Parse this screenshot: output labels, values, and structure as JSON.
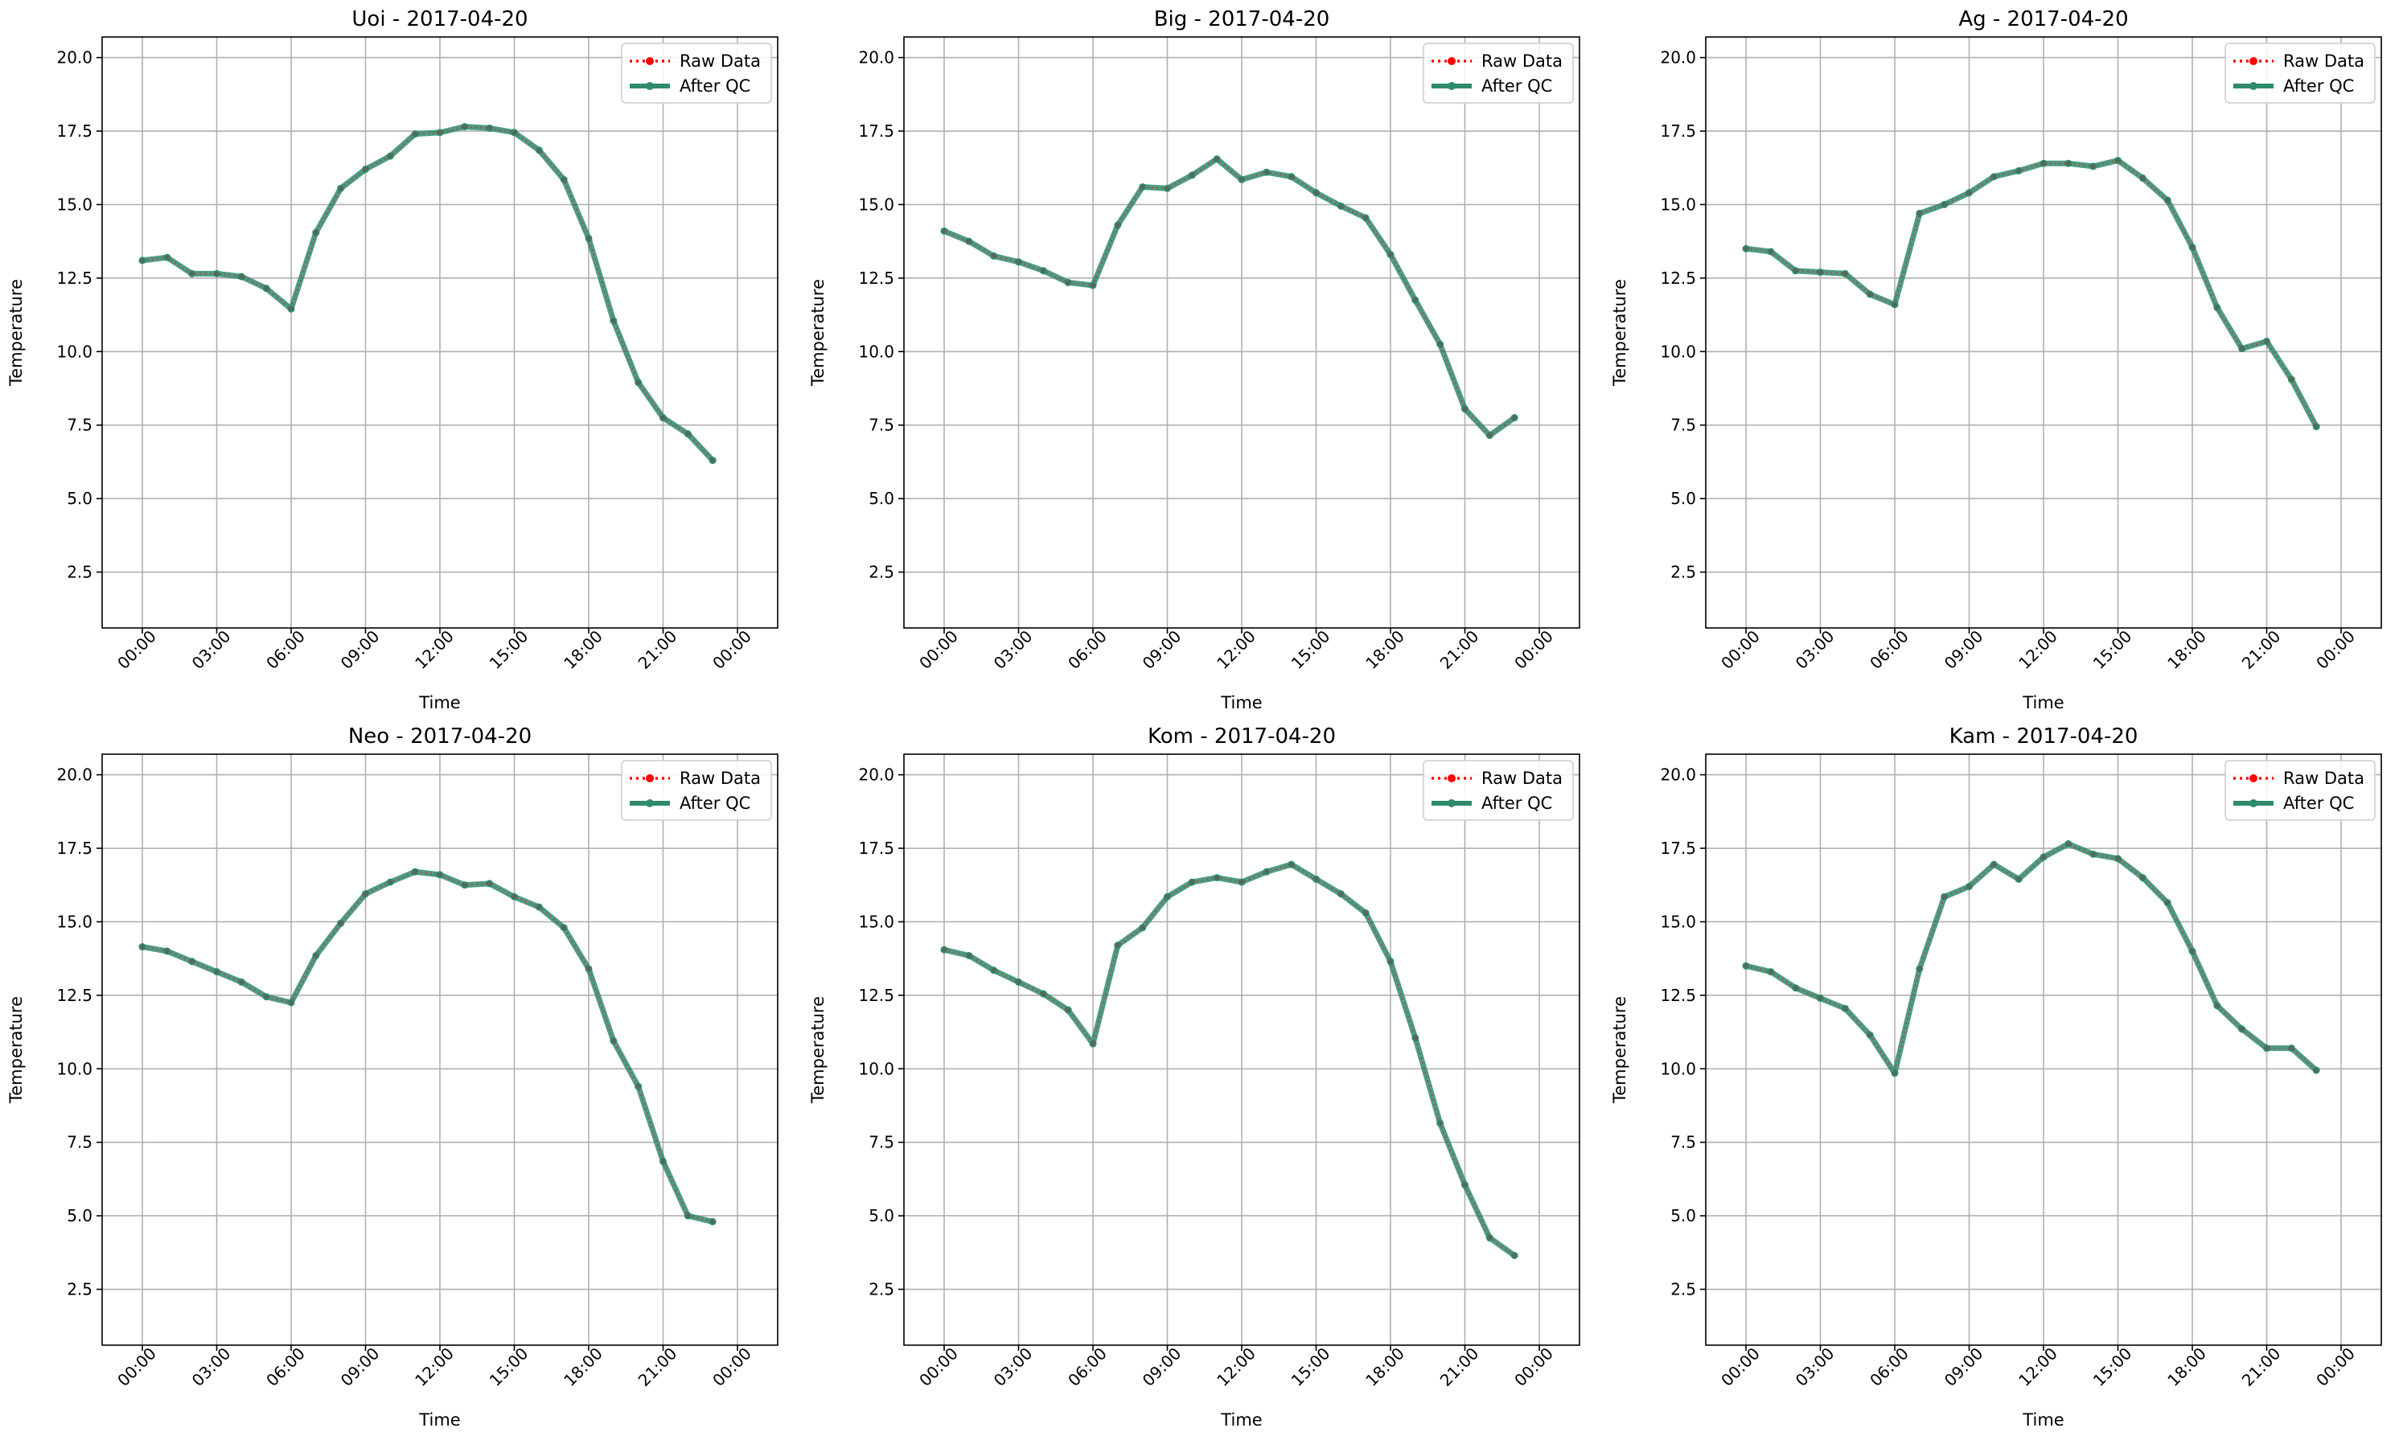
{
  "figure": {
    "background": "#ffffff"
  },
  "style": {
    "raw_color": "#ff0000",
    "qc_color": "#2e8b6e",
    "grid_color": "#b0b0b0"
  },
  "chart_data": [
    {
      "type": "line",
      "title": "Uoi - 2017-04-20",
      "xlabel": "Time",
      "ylabel": "Temperature",
      "x": [
        "00:00",
        "01:00",
        "02:00",
        "03:00",
        "04:00",
        "05:00",
        "06:00",
        "07:00",
        "08:00",
        "09:00",
        "10:00",
        "11:00",
        "12:00",
        "13:00",
        "14:00",
        "15:00",
        "16:00",
        "17:00",
        "18:00",
        "19:00",
        "20:00",
        "21:00",
        "22:00",
        "23:00"
      ],
      "xtick_labels": [
        "00:00",
        "03:00",
        "06:00",
        "09:00",
        "12:00",
        "15:00",
        "18:00",
        "21:00",
        "00:00"
      ],
      "ylim": [
        0.6,
        20.7
      ],
      "yticks": [
        "2.5",
        "5.0",
        "7.5",
        "10.0",
        "12.5",
        "15.0",
        "17.5",
        "20.0"
      ],
      "grid": true,
      "legend_position": "top-right",
      "series": [
        {
          "name": "Raw Data",
          "values": [
            13.1,
            13.2,
            12.65,
            12.65,
            12.55,
            12.15,
            11.45,
            14.05,
            15.55,
            16.2,
            16.65,
            17.4,
            17.45,
            17.65,
            17.6,
            17.45,
            16.85,
            15.85,
            13.85,
            11.05,
            8.95,
            7.75,
            7.2,
            6.3
          ]
        },
        {
          "name": "After QC",
          "values": [
            13.1,
            13.2,
            12.65,
            12.65,
            12.55,
            12.15,
            11.45,
            14.05,
            15.55,
            16.2,
            16.65,
            17.4,
            17.45,
            17.65,
            17.6,
            17.45,
            16.85,
            15.85,
            13.85,
            11.05,
            8.95,
            7.75,
            7.2,
            6.3
          ]
        }
      ]
    },
    {
      "type": "line",
      "title": "Big - 2017-04-20",
      "xlabel": "Time",
      "ylabel": "Temperature",
      "x": [
        "00:00",
        "01:00",
        "02:00",
        "03:00",
        "04:00",
        "05:00",
        "06:00",
        "07:00",
        "08:00",
        "09:00",
        "10:00",
        "11:00",
        "12:00",
        "13:00",
        "14:00",
        "15:00",
        "16:00",
        "17:00",
        "18:00",
        "19:00",
        "20:00",
        "21:00",
        "22:00",
        "23:00"
      ],
      "xtick_labels": [
        "00:00",
        "03:00",
        "06:00",
        "09:00",
        "12:00",
        "15:00",
        "18:00",
        "21:00",
        "00:00"
      ],
      "ylim": [
        0.6,
        20.7
      ],
      "yticks": [
        "2.5",
        "5.0",
        "7.5",
        "10.0",
        "12.5",
        "15.0",
        "17.5",
        "20.0"
      ],
      "grid": true,
      "legend_position": "top-right",
      "series": [
        {
          "name": "Raw Data",
          "values": [
            14.1,
            13.75,
            13.25,
            13.05,
            12.75,
            12.35,
            12.25,
            14.3,
            15.6,
            15.55,
            16.0,
            16.55,
            15.85,
            16.1,
            15.95,
            15.4,
            14.95,
            14.55,
            13.3,
            11.75,
            10.25,
            8.05,
            7.15,
            7.75
          ]
        },
        {
          "name": "After QC",
          "values": [
            14.1,
            13.75,
            13.25,
            13.05,
            12.75,
            12.35,
            12.25,
            14.3,
            15.6,
            15.55,
            16.0,
            16.55,
            15.85,
            16.1,
            15.95,
            15.4,
            14.95,
            14.55,
            13.3,
            11.75,
            10.25,
            8.05,
            7.15,
            7.75
          ]
        }
      ]
    },
    {
      "type": "line",
      "title": "Ag - 2017-04-20",
      "xlabel": "Time",
      "ylabel": "Temperature",
      "x": [
        "00:00",
        "01:00",
        "02:00",
        "03:00",
        "04:00",
        "05:00",
        "06:00",
        "07:00",
        "08:00",
        "09:00",
        "10:00",
        "11:00",
        "12:00",
        "13:00",
        "14:00",
        "15:00",
        "16:00",
        "17:00",
        "18:00",
        "19:00",
        "20:00",
        "21:00",
        "22:00",
        "23:00"
      ],
      "xtick_labels": [
        "00:00",
        "03:00",
        "06:00",
        "09:00",
        "12:00",
        "15:00",
        "18:00",
        "21:00",
        "00:00"
      ],
      "ylim": [
        0.6,
        20.7
      ],
      "yticks": [
        "2.5",
        "5.0",
        "7.5",
        "10.0",
        "12.5",
        "15.0",
        "17.5",
        "20.0"
      ],
      "grid": true,
      "legend_position": "top-right",
      "series": [
        {
          "name": "Raw Data",
          "values": [
            13.5,
            13.4,
            12.75,
            12.7,
            12.65,
            11.95,
            11.6,
            14.7,
            15.0,
            15.4,
            15.95,
            16.15,
            16.4,
            16.4,
            16.3,
            16.5,
            15.9,
            15.15,
            13.55,
            11.5,
            10.1,
            10.35,
            9.05,
            7.45
          ]
        },
        {
          "name": "After QC",
          "values": [
            13.5,
            13.4,
            12.75,
            12.7,
            12.65,
            11.95,
            11.6,
            14.7,
            15.0,
            15.4,
            15.95,
            16.15,
            16.4,
            16.4,
            16.3,
            16.5,
            15.9,
            15.15,
            13.55,
            11.5,
            10.1,
            10.35,
            9.05,
            7.45
          ]
        }
      ]
    },
    {
      "type": "line",
      "title": "Neo - 2017-04-20",
      "xlabel": "Time",
      "ylabel": "Temperature",
      "x": [
        "00:00",
        "01:00",
        "02:00",
        "03:00",
        "04:00",
        "05:00",
        "06:00",
        "07:00",
        "08:00",
        "09:00",
        "10:00",
        "11:00",
        "12:00",
        "13:00",
        "14:00",
        "15:00",
        "16:00",
        "17:00",
        "18:00",
        "19:00",
        "20:00",
        "21:00",
        "22:00",
        "23:00"
      ],
      "xtick_labels": [
        "00:00",
        "03:00",
        "06:00",
        "09:00",
        "12:00",
        "15:00",
        "18:00",
        "21:00",
        "00:00"
      ],
      "ylim": [
        0.6,
        20.7
      ],
      "yticks": [
        "2.5",
        "5.0",
        "7.5",
        "10.0",
        "12.5",
        "15.0",
        "17.5",
        "20.0"
      ],
      "grid": true,
      "legend_position": "top-right",
      "series": [
        {
          "name": "Raw Data",
          "values": [
            14.15,
            14.0,
            13.65,
            13.3,
            12.95,
            12.45,
            12.25,
            13.85,
            14.95,
            15.95,
            16.35,
            16.7,
            16.6,
            16.25,
            16.3,
            15.85,
            15.5,
            14.8,
            13.4,
            10.95,
            9.4,
            6.85,
            5.0,
            4.8
          ]
        },
        {
          "name": "After QC",
          "values": [
            14.15,
            14.0,
            13.65,
            13.3,
            12.95,
            12.45,
            12.25,
            13.85,
            14.95,
            15.95,
            16.35,
            16.7,
            16.6,
            16.25,
            16.3,
            15.85,
            15.5,
            14.8,
            13.4,
            10.95,
            9.4,
            6.85,
            5.0,
            4.8
          ]
        }
      ]
    },
    {
      "type": "line",
      "title": "Kom - 2017-04-20",
      "xlabel": "Time",
      "ylabel": "Temperature",
      "x": [
        "00:00",
        "01:00",
        "02:00",
        "03:00",
        "04:00",
        "05:00",
        "06:00",
        "07:00",
        "08:00",
        "09:00",
        "10:00",
        "11:00",
        "12:00",
        "13:00",
        "14:00",
        "15:00",
        "16:00",
        "17:00",
        "18:00",
        "19:00",
        "20:00",
        "21:00",
        "22:00",
        "23:00"
      ],
      "xtick_labels": [
        "00:00",
        "03:00",
        "06:00",
        "09:00",
        "12:00",
        "15:00",
        "18:00",
        "21:00",
        "00:00"
      ],
      "ylim": [
        0.6,
        20.7
      ],
      "yticks": [
        "2.5",
        "5.0",
        "7.5",
        "10.0",
        "12.5",
        "15.0",
        "17.5",
        "20.0"
      ],
      "grid": true,
      "legend_position": "top-right",
      "series": [
        {
          "name": "Raw Data",
          "values": [
            14.05,
            13.85,
            13.35,
            12.95,
            12.55,
            12.0,
            10.85,
            14.2,
            14.8,
            15.85,
            16.35,
            16.5,
            16.35,
            16.7,
            16.95,
            16.45,
            15.95,
            15.3,
            13.65,
            11.05,
            8.15,
            6.05,
            4.25,
            3.65
          ]
        },
        {
          "name": "After QC",
          "values": [
            14.05,
            13.85,
            13.35,
            12.95,
            12.55,
            12.0,
            10.85,
            14.2,
            14.8,
            15.85,
            16.35,
            16.5,
            16.35,
            16.7,
            16.95,
            16.45,
            15.95,
            15.3,
            13.65,
            11.05,
            8.15,
            6.05,
            4.25,
            3.65
          ]
        }
      ]
    },
    {
      "type": "line",
      "title": "Kam - 2017-04-20",
      "xlabel": "Time",
      "ylabel": "Temperature",
      "x": [
        "00:00",
        "01:00",
        "02:00",
        "03:00",
        "04:00",
        "05:00",
        "06:00",
        "07:00",
        "08:00",
        "09:00",
        "10:00",
        "11:00",
        "12:00",
        "13:00",
        "14:00",
        "15:00",
        "16:00",
        "17:00",
        "18:00",
        "19:00",
        "20:00",
        "21:00",
        "22:00",
        "23:00"
      ],
      "xtick_labels": [
        "00:00",
        "03:00",
        "06:00",
        "09:00",
        "12:00",
        "15:00",
        "18:00",
        "21:00",
        "00:00"
      ],
      "ylim": [
        0.6,
        20.7
      ],
      "yticks": [
        "2.5",
        "5.0",
        "7.5",
        "10.0",
        "12.5",
        "15.0",
        "17.5",
        "20.0"
      ],
      "grid": true,
      "legend_position": "top-right",
      "series": [
        {
          "name": "Raw Data",
          "values": [
            13.5,
            13.3,
            12.75,
            12.4,
            12.05,
            11.15,
            9.85,
            13.4,
            15.85,
            16.2,
            16.95,
            16.45,
            17.2,
            17.65,
            17.3,
            17.15,
            16.5,
            15.65,
            14.0,
            12.15,
            11.35,
            10.7,
            10.7,
            9.95
          ]
        },
        {
          "name": "After QC",
          "values": [
            13.5,
            13.3,
            12.75,
            12.4,
            12.05,
            11.15,
            9.85,
            13.4,
            15.85,
            16.2,
            16.95,
            16.45,
            17.2,
            17.65,
            17.3,
            17.15,
            16.5,
            15.65,
            14.0,
            12.15,
            11.35,
            10.7,
            10.7,
            9.95
          ]
        }
      ]
    }
  ]
}
